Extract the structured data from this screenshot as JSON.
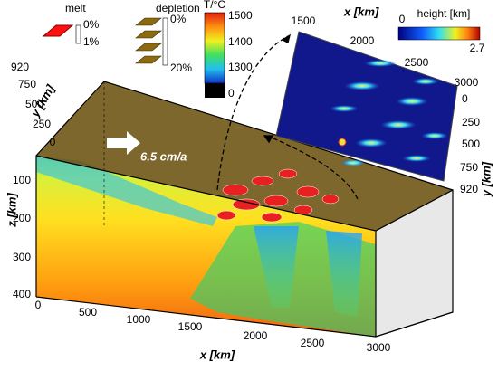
{
  "legend": {
    "melt": {
      "title": "melt",
      "min": "0%",
      "max": "1%"
    },
    "depletion": {
      "title": "depletion",
      "min": "0%",
      "max": "20%"
    },
    "temperature": {
      "title": "T/°C",
      "ticks": [
        "1500",
        "1400",
        "1300",
        "0"
      ]
    }
  },
  "inset": {
    "x_axis": {
      "title": "x [km]",
      "ticks": [
        "1500",
        "2000",
        "2500",
        "3000"
      ]
    },
    "y_axis": {
      "title": "y [km]",
      "ticks": [
        "0",
        "250",
        "500",
        "750",
        "920"
      ]
    },
    "colorbar": {
      "title": "height [km]",
      "min": "0",
      "max": "2.7"
    }
  },
  "block": {
    "plate_velocity": "6.5 cm/a",
    "y_axis": {
      "title": "y [km]",
      "ticks": [
        "920",
        "750",
        "500",
        "250",
        "0"
      ]
    },
    "z_axis": {
      "title": "z [km]",
      "ticks": [
        "100",
        "200",
        "300",
        "400"
      ]
    },
    "x_axis": {
      "title": "x [km]",
      "ticks": [
        "0",
        "500",
        "1000",
        "1500",
        "2000",
        "2500",
        "3000"
      ]
    }
  }
}
